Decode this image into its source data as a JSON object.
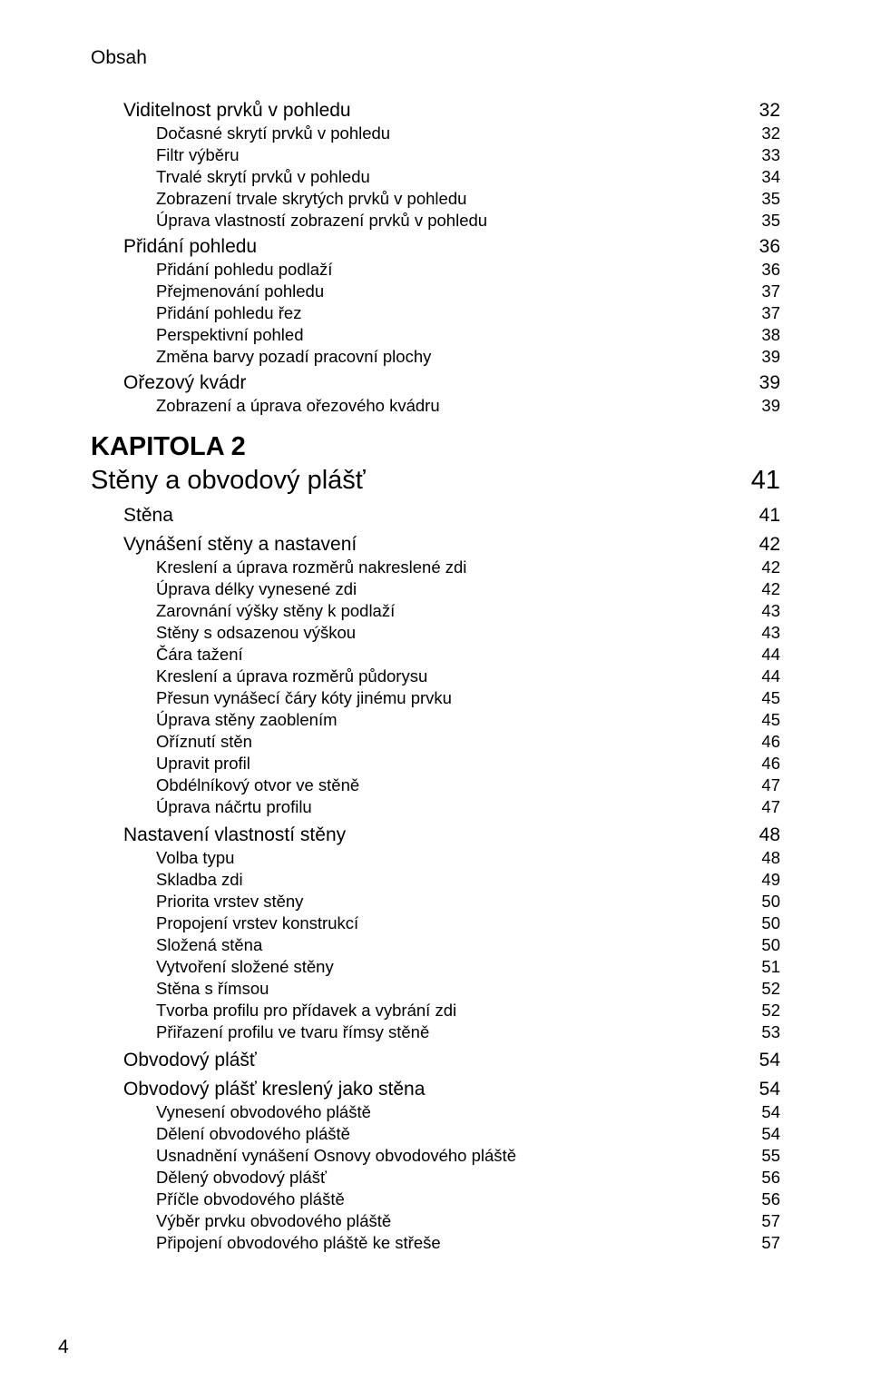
{
  "running_header": "Obsah",
  "page_number": "4",
  "pre_chapter": {
    "sections": [
      {
        "label": "Viditelnost prvků v pohledu",
        "page": "32",
        "items": [
          {
            "label": "Dočasné skrytí prvků v pohledu",
            "page": "32"
          },
          {
            "label": "Filtr výběru",
            "page": "33"
          },
          {
            "label": "Trvalé skrytí prvků v pohledu",
            "page": "34"
          },
          {
            "label": "Zobrazení trvale skrytých prvků v pohledu",
            "page": "35"
          },
          {
            "label": "Úprava vlastností zobrazení prvků v pohledu",
            "page": "35"
          }
        ]
      },
      {
        "label": "Přidání pohledu",
        "page": "36",
        "items": [
          {
            "label": "Přidání pohledu podlaží",
            "page": "36"
          },
          {
            "label": "Přejmenování pohledu",
            "page": "37"
          },
          {
            "label": "Přidání pohledu řez",
            "page": "37"
          },
          {
            "label": "Perspektivní pohled",
            "page": "38"
          },
          {
            "label": "Změna barvy pozadí pracovní plochy",
            "page": "39"
          }
        ]
      },
      {
        "label": "Ořezový kvádr",
        "page": "39",
        "items": [
          {
            "label": "Zobrazení a úprava ořezového kvádru",
            "page": "39"
          }
        ]
      }
    ]
  },
  "chapter": {
    "kapitola_label": "KAPITOLA 2",
    "title": "Stěny a obvodový plášť",
    "page": "41",
    "sections": [
      {
        "label": "Stěna",
        "page": "41",
        "items": []
      },
      {
        "label": "Vynášení stěny a nastavení",
        "page": "42",
        "items": [
          {
            "label": "Kreslení a úprava rozměrů nakreslené zdi",
            "page": "42"
          },
          {
            "label": "Úprava délky vynesené zdi",
            "page": "42"
          },
          {
            "label": "Zarovnání výšky stěny k podlaží",
            "page": "43"
          },
          {
            "label": "Stěny s odsazenou výškou",
            "page": "43"
          },
          {
            "label": "Čára tažení",
            "page": "44"
          },
          {
            "label": "Kreslení a úprava rozměrů půdorysu",
            "page": "44"
          },
          {
            "label": "Přesun vynášecí čáry kóty jinému prvku",
            "page": "45"
          },
          {
            "label": "Úprava stěny zaoblením",
            "page": "45"
          },
          {
            "label": "Oříznutí stěn",
            "page": "46"
          },
          {
            "label": "Upravit profil",
            "page": "46"
          },
          {
            "label": "Obdélníkový otvor ve stěně",
            "page": "47"
          },
          {
            "label": "Úprava náčrtu profilu",
            "page": "47"
          }
        ]
      },
      {
        "label": "Nastavení vlastností stěny",
        "page": "48",
        "items": [
          {
            "label": "Volba typu",
            "page": "48"
          },
          {
            "label": "Skladba zdi",
            "page": "49"
          },
          {
            "label": "Priorita vrstev stěny",
            "page": "50"
          },
          {
            "label": "Propojení vrstev konstrukcí",
            "page": "50"
          },
          {
            "label": "Složená stěna",
            "page": "50"
          },
          {
            "label": "Vytvoření složené stěny",
            "page": "51"
          },
          {
            "label": "Stěna s římsou",
            "page": "52"
          },
          {
            "label": "Tvorba profilu pro přídavek a vybrání zdi",
            "page": "52"
          },
          {
            "label": "Přiřazení profilu ve tvaru římsy stěně",
            "page": "53"
          }
        ]
      },
      {
        "label": "Obvodový plášť",
        "page": "54",
        "items": []
      },
      {
        "label": "Obvodový plášť kreslený jako stěna",
        "page": "54",
        "items": [
          {
            "label": "Vynesení obvodového pláště",
            "page": "54"
          },
          {
            "label": "Dělení obvodového pláště",
            "page": "54"
          },
          {
            "label": "Usnadnění vynášení Osnovy obvodového pláště",
            "page": "55"
          },
          {
            "label": "Dělený obvodový plášť",
            "page": "56"
          },
          {
            "label": "Příčle obvodového pláště",
            "page": "56"
          },
          {
            "label": "Výběr prvku obvodového pláště",
            "page": "57"
          },
          {
            "label": "Připojení obvodového pláště ke střeše",
            "page": "57"
          }
        ]
      }
    ]
  }
}
